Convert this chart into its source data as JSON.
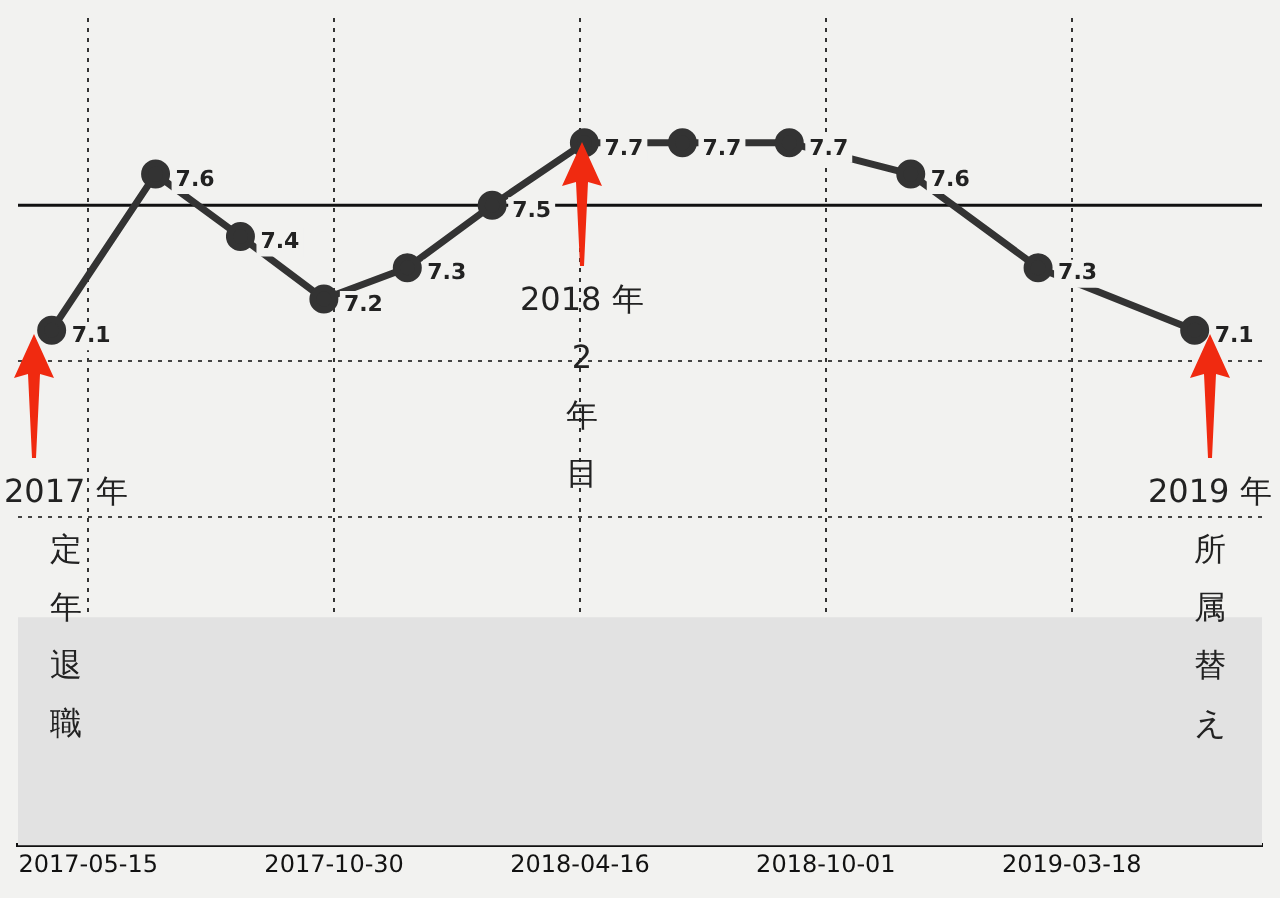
{
  "chart_data": {
    "type": "line",
    "x": [
      "2017-04-20",
      "2017-06-30",
      "2017-08-27",
      "2017-10-23",
      "2017-12-19",
      "2018-02-15",
      "2018-04-19",
      "2018-06-25",
      "2018-09-06",
      "2018-11-28",
      "2019-02-23",
      "2019-06-10"
    ],
    "series": [
      {
        "color": "#333333",
        "values": [
          7.1,
          7.6,
          7.4,
          7.2,
          7.3,
          7.5,
          7.7,
          7.7,
          7.7,
          7.6,
          7.3,
          7.1
        ]
      }
    ],
    "data_labels": true,
    "marker": "circle",
    "line_style": "solid",
    "xlim": [
      "2017-03-28",
      "2019-07-26"
    ],
    "xticks": [
      "2017-05-15",
      "2017-10-30",
      "2018-04-16",
      "2018-10-01",
      "2019-03-18"
    ],
    "ylim": [
      5.45,
      8.1
    ],
    "yticks": [
      {
        "value": 6.5,
        "label": null
      },
      {
        "value": 7.0,
        "label": null
      }
    ],
    "grid": true,
    "tick_labels": "x",
    "legend": false,
    "ref_lines": [
      {
        "axis": "y",
        "value": 7.5,
        "color": "#111111"
      }
    ],
    "bands": [
      {
        "axis": "y",
        "from": 5.45,
        "to": 6.18,
        "color": "#e2e2e2"
      }
    ],
    "annotations": [
      "2017 年定年退職",
      "2018 年2年目",
      "2019 年所属替え"
    ]
  }
}
